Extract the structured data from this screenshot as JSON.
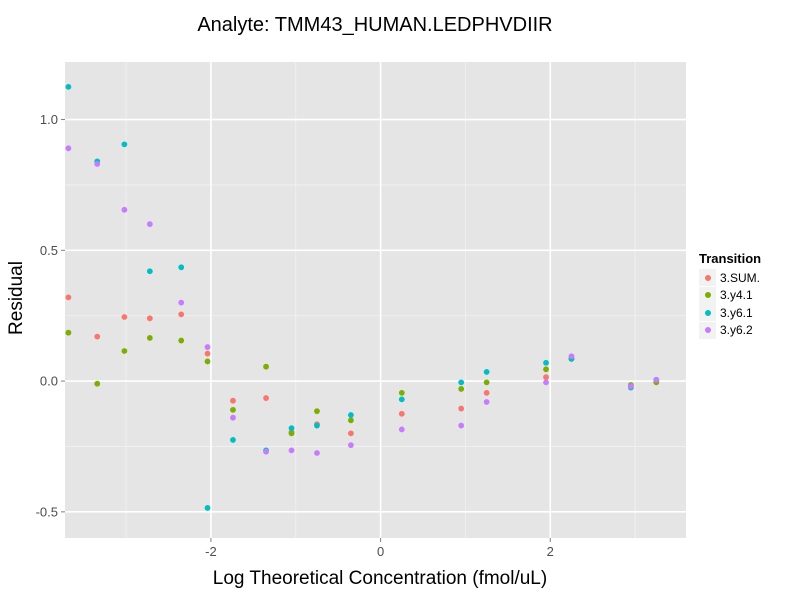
{
  "chart_data": {
    "type": "scatter",
    "title": "Analyte: TMM43_HUMAN.LEDPHVDIIR",
    "xlabel": "Log Theoretical Concentration (fmol/uL)",
    "ylabel": "Residual",
    "xlim": [
      -3.72,
      3.6
    ],
    "ylim": [
      -0.6,
      1.22
    ],
    "x_ticks": [
      -2,
      0,
      2
    ],
    "x_tick_labels": [
      "-2",
      "0",
      "2"
    ],
    "y_ticks": [
      -0.5,
      0.0,
      0.5,
      1.0
    ],
    "y_tick_labels": [
      "-0.5",
      "0.0",
      "0.5",
      "1.0"
    ],
    "grid": true,
    "legend": {
      "title": "Transition",
      "position": "right"
    },
    "series": [
      {
        "name": "3.SUM.",
        "color": "#F8766D",
        "points": [
          [
            -3.68,
            0.32
          ],
          [
            -3.34,
            0.17
          ],
          [
            -3.02,
            0.245
          ],
          [
            -2.72,
            0.24
          ],
          [
            -2.35,
            0.255
          ],
          [
            -2.04,
            0.105
          ],
          [
            -1.74,
            -0.075
          ],
          [
            -1.35,
            -0.065
          ],
          [
            -1.05,
            -0.195
          ],
          [
            -0.75,
            -0.165
          ],
          [
            -0.35,
            -0.2
          ],
          [
            0.25,
            -0.125
          ],
          [
            0.95,
            -0.105
          ],
          [
            1.25,
            -0.045
          ],
          [
            1.95,
            0.015
          ],
          [
            2.25,
            0.085
          ],
          [
            2.95,
            -0.02
          ],
          [
            3.25,
            0.0
          ]
        ]
      },
      {
        "name": "3.y4.1",
        "color": "#7CAE00",
        "points": [
          [
            -3.68,
            0.185
          ],
          [
            -3.34,
            -0.01
          ],
          [
            -3.02,
            0.115
          ],
          [
            -2.72,
            0.165
          ],
          [
            -2.35,
            0.155
          ],
          [
            -2.04,
            0.075
          ],
          [
            -1.74,
            -0.11
          ],
          [
            -1.35,
            0.055
          ],
          [
            -1.05,
            -0.2
          ],
          [
            -0.75,
            -0.115
          ],
          [
            -0.35,
            -0.15
          ],
          [
            0.25,
            -0.045
          ],
          [
            0.95,
            -0.03
          ],
          [
            1.25,
            -0.005
          ],
          [
            1.95,
            0.045
          ],
          [
            2.25,
            0.085
          ],
          [
            2.95,
            -0.015
          ],
          [
            3.25,
            -0.005
          ]
        ]
      },
      {
        "name": "3.y6.1",
        "color": "#00BFC4",
        "points": [
          [
            -3.68,
            1.125
          ],
          [
            -3.34,
            0.84
          ],
          [
            -3.02,
            0.905
          ],
          [
            -2.72,
            0.42
          ],
          [
            -2.35,
            0.435
          ],
          [
            -2.04,
            -0.485
          ],
          [
            -1.74,
            -0.225
          ],
          [
            -1.35,
            -0.265
          ],
          [
            -1.05,
            -0.18
          ],
          [
            -0.75,
            -0.17
          ],
          [
            -0.35,
            -0.13
          ],
          [
            0.25,
            -0.07
          ],
          [
            0.95,
            -0.005
          ],
          [
            1.25,
            0.035
          ],
          [
            1.95,
            0.07
          ],
          [
            2.25,
            0.085
          ],
          [
            2.95,
            -0.025
          ],
          [
            3.25,
            0.005
          ]
        ]
      },
      {
        "name": "3.y6.2",
        "color": "#C77CFF",
        "points": [
          [
            -3.68,
            0.89
          ],
          [
            -3.34,
            0.83
          ],
          [
            -3.02,
            0.655
          ],
          [
            -2.72,
            0.6
          ],
          [
            -2.35,
            0.3
          ],
          [
            -2.04,
            0.13
          ],
          [
            -1.74,
            -0.14
          ],
          [
            -1.35,
            -0.27
          ],
          [
            -1.05,
            -0.265
          ],
          [
            -0.75,
            -0.275
          ],
          [
            -0.35,
            -0.245
          ],
          [
            0.25,
            -0.185
          ],
          [
            0.95,
            -0.17
          ],
          [
            1.25,
            -0.08
          ],
          [
            1.95,
            -0.005
          ],
          [
            2.25,
            0.095
          ],
          [
            2.95,
            -0.02
          ],
          [
            3.25,
            0.005
          ]
        ]
      }
    ]
  }
}
